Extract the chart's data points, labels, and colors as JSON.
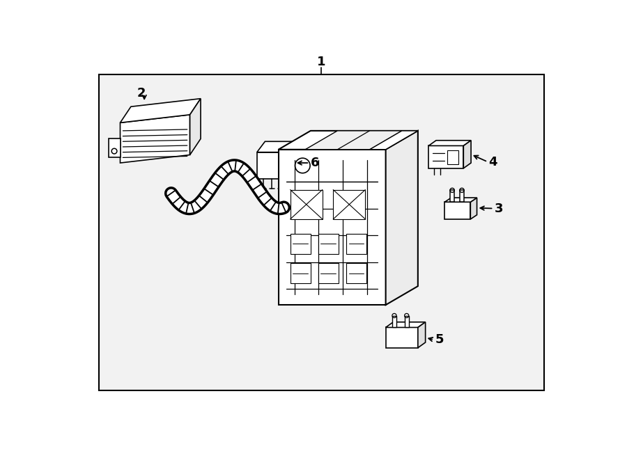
{
  "bg_color": "#f2f2f2",
  "border_color": "#000000",
  "line_color": "#000000",
  "label_1": "1",
  "label_2": "2",
  "label_3": "3",
  "label_4": "4",
  "label_5": "5",
  "label_6": "6",
  "label_fontsize": 13,
  "lw": 1.2
}
